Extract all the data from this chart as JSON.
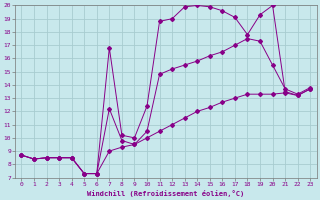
{
  "xlabel": "Windchill (Refroidissement éolien,°C)",
  "xlim": [
    -0.5,
    23.5
  ],
  "ylim": [
    7,
    20
  ],
  "xtick_vals": [
    0,
    1,
    2,
    3,
    4,
    5,
    6,
    7,
    8,
    9,
    10,
    11,
    12,
    13,
    14,
    15,
    16,
    17,
    18,
    19,
    20,
    21,
    22,
    23
  ],
  "xtick_labels": [
    "0",
    "1",
    "2",
    "3",
    "4",
    "5",
    "6",
    "7",
    "8",
    "9",
    "10",
    "11",
    "12",
    "13",
    "14",
    "15",
    "16",
    "17",
    "18",
    "19",
    "20",
    "21",
    "22",
    "23"
  ],
  "ytick_vals": [
    7,
    8,
    9,
    10,
    11,
    12,
    13,
    14,
    15,
    16,
    17,
    18,
    19,
    20
  ],
  "ytick_labels": [
    "7",
    "8",
    "9",
    "10",
    "11",
    "12",
    "13",
    "14",
    "15",
    "16",
    "17",
    "18",
    "19",
    "20"
  ],
  "background_color": "#c8e8ec",
  "line_color": "#880088",
  "grid_color": "#a8ccd0",
  "curves": [
    {
      "x": [
        0,
        1,
        2,
        3,
        4,
        5,
        6,
        7,
        8,
        9,
        10,
        11,
        12,
        13,
        14,
        15,
        16,
        17,
        18,
        19,
        20,
        21,
        22,
        23
      ],
      "y": [
        8.7,
        8.4,
        8.5,
        8.5,
        8.5,
        7.3,
        7.3,
        16.8,
        10.2,
        10.0,
        12.4,
        18.8,
        19.0,
        19.9,
        20.0,
        19.9,
        19.6,
        19.1,
        17.8,
        19.3,
        20.0,
        13.5,
        13.2,
        13.7
      ]
    },
    {
      "x": [
        0,
        1,
        2,
        3,
        4,
        5,
        6,
        7,
        8,
        9,
        10,
        11,
        12,
        13,
        14,
        15,
        16,
        17,
        18,
        19,
        20,
        21,
        22,
        23
      ],
      "y": [
        8.7,
        8.4,
        8.5,
        8.5,
        8.5,
        7.3,
        7.3,
        12.2,
        9.8,
        9.5,
        10.5,
        14.8,
        15.2,
        15.5,
        15.8,
        16.2,
        16.5,
        17.0,
        17.5,
        17.3,
        15.5,
        13.7,
        13.3,
        13.8
      ]
    },
    {
      "x": [
        0,
        1,
        2,
        3,
        4,
        5,
        6,
        7,
        8,
        9,
        10,
        11,
        12,
        13,
        14,
        15,
        16,
        17,
        18,
        19,
        20,
        21,
        22,
        23
      ],
      "y": [
        8.7,
        8.4,
        8.5,
        8.5,
        8.5,
        7.3,
        7.3,
        9.0,
        9.3,
        9.5,
        10.0,
        10.5,
        11.0,
        11.5,
        12.0,
        12.3,
        12.7,
        13.0,
        13.3,
        13.3,
        13.3,
        13.4,
        13.2,
        13.7
      ]
    }
  ]
}
